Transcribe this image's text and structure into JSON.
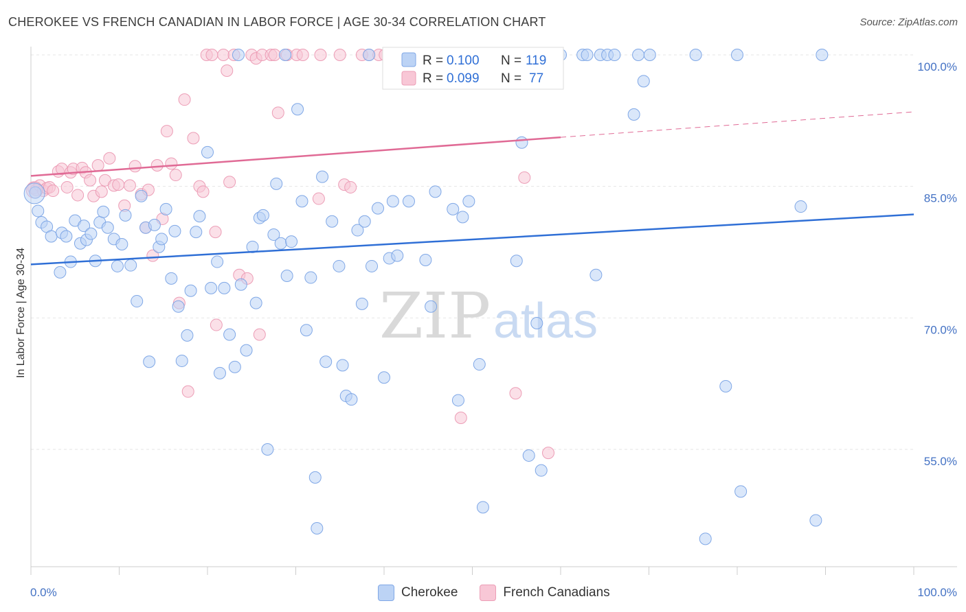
{
  "header": {
    "title": "CHEROKEE VS FRENCH CANADIAN IN LABOR FORCE | AGE 30-34 CORRELATION CHART",
    "source": "Source: ZipAtlas.com"
  },
  "watermark": {
    "zip": "ZIP",
    "atlas": "atlas"
  },
  "legend_top": {
    "rows": [
      {
        "r_label": "R = ",
        "r_value": "0.100",
        "n_label": "N = ",
        "n_value": "119"
      },
      {
        "r_label": "R = ",
        "r_value": "0.099",
        "n_label": "N = ",
        "n_value": "77"
      }
    ]
  },
  "legend_bottom": {
    "items": [
      "Cherokee",
      "French Canadians"
    ]
  },
  "colors": {
    "blue_fill": "#bcd3f5",
    "blue_stroke": "#7fa7e6",
    "blue_line": "#2f6fd6",
    "pink_fill": "#f8c7d6",
    "pink_stroke": "#ec9db6",
    "pink_line": "#e06a95"
  },
  "chart_data": {
    "type": "scatter",
    "title": "CHEROKEE VS FRENCH CANADIAN IN LABOR FORCE | AGE 30-34 CORRELATION CHART",
    "xlabel": "",
    "ylabel": "In Labor Force | Age 30-34",
    "xlim": [
      0,
      100
    ],
    "ylim": [
      40,
      102
    ],
    "x_tick_labels": [
      "0.0%",
      "100.0%"
    ],
    "y_ticks": [
      {
        "value": 100,
        "label": "100.0%"
      },
      {
        "value": 85,
        "label": "85.0%"
      },
      {
        "value": 70,
        "label": "70.0%"
      },
      {
        "value": 55,
        "label": "55.0%"
      }
    ],
    "grid": true,
    "legend_placement": "top-center",
    "series": [
      {
        "name": "Cherokee",
        "trend": {
          "x": [
            0,
            100
          ],
          "y": [
            76.1,
            81.8
          ],
          "style": "solid"
        },
        "points": [
          [
            0.5,
            84.3
          ],
          [
            0.8,
            82.2
          ],
          [
            1.2,
            80.9
          ],
          [
            1.8,
            80.4
          ],
          [
            2.3,
            79.3
          ],
          [
            3.5,
            79.7
          ],
          [
            4,
            79.3
          ],
          [
            3.3,
            75.2
          ],
          [
            4.5,
            76.4
          ],
          [
            5,
            81.1
          ],
          [
            5.6,
            78.5
          ],
          [
            6,
            80.5
          ],
          [
            6.3,
            78.9
          ],
          [
            6.8,
            79.6
          ],
          [
            7.3,
            76.5
          ],
          [
            7.8,
            80.9
          ],
          [
            8.2,
            82.1
          ],
          [
            8.7,
            80.3
          ],
          [
            9.4,
            79.0
          ],
          [
            9.8,
            75.9
          ],
          [
            10.3,
            78.4
          ],
          [
            10.7,
            81.7
          ],
          [
            11.3,
            76.0
          ],
          [
            12.0,
            71.9
          ],
          [
            12.5,
            83.9
          ],
          [
            13.0,
            80.3
          ],
          [
            13.4,
            65.0
          ],
          [
            14.0,
            80.6
          ],
          [
            14.5,
            78.1
          ],
          [
            14.8,
            79.0
          ],
          [
            15.3,
            82.4
          ],
          [
            15.9,
            74.5
          ],
          [
            16.3,
            79.9
          ],
          [
            16.7,
            71.3
          ],
          [
            17.1,
            65.1
          ],
          [
            17.7,
            68.0
          ],
          [
            18.1,
            73.1
          ],
          [
            18.7,
            79.8
          ],
          [
            19.1,
            81.6
          ],
          [
            20.0,
            88.9
          ],
          [
            20.4,
            73.4
          ],
          [
            21.1,
            76.4
          ],
          [
            21.4,
            63.7
          ],
          [
            21.9,
            73.4
          ],
          [
            22.5,
            68.1
          ],
          [
            23.1,
            64.4
          ],
          [
            23.5,
            100.0
          ],
          [
            23.8,
            73.8
          ],
          [
            24.4,
            66.3
          ],
          [
            25.1,
            78.1
          ],
          [
            25.5,
            71.7
          ],
          [
            25.9,
            81.4
          ],
          [
            26.3,
            81.7
          ],
          [
            26.8,
            55.0
          ],
          [
            27.5,
            79.5
          ],
          [
            27.8,
            85.3
          ],
          [
            28.3,
            78.5
          ],
          [
            28.8,
            100.0
          ],
          [
            29.0,
            74.8
          ],
          [
            29.5,
            78.7
          ],
          [
            30.2,
            93.8
          ],
          [
            30.7,
            83.3
          ],
          [
            31.2,
            68.6
          ],
          [
            31.7,
            74.6
          ],
          [
            32.2,
            51.8
          ],
          [
            32.4,
            46.0
          ],
          [
            33.0,
            86.1
          ],
          [
            33.4,
            65.0
          ],
          [
            34.1,
            81.0
          ],
          [
            34.9,
            75.9
          ],
          [
            35.3,
            64.6
          ],
          [
            35.7,
            61.1
          ],
          [
            36.3,
            60.7
          ],
          [
            37.0,
            80.0
          ],
          [
            37.5,
            71.6
          ],
          [
            37.8,
            81.0
          ],
          [
            38.3,
            100.0
          ],
          [
            38.6,
            75.9
          ],
          [
            39.3,
            82.5
          ],
          [
            40.0,
            63.2
          ],
          [
            40.6,
            76.8
          ],
          [
            41.0,
            83.3
          ],
          [
            41.5,
            77.1
          ],
          [
            42.0,
            100.0
          ],
          [
            42.8,
            83.3
          ],
          [
            43.1,
            100.0
          ],
          [
            44.7,
            76.6
          ],
          [
            45.3,
            71.3
          ],
          [
            45.8,
            84.4
          ],
          [
            46.5,
            100.0
          ],
          [
            47.8,
            82.4
          ],
          [
            48.4,
            60.6
          ],
          [
            48.9,
            81.5
          ],
          [
            49.6,
            83.3
          ],
          [
            50.8,
            64.7
          ],
          [
            51.2,
            48.4
          ],
          [
            55.0,
            76.5
          ],
          [
            55.6,
            90.0
          ],
          [
            56.4,
            54.3
          ],
          [
            57.3,
            69.4
          ],
          [
            57.8,
            52.6
          ],
          [
            60.0,
            100.0
          ],
          [
            62.5,
            100.0
          ],
          [
            63.0,
            100.0
          ],
          [
            64.0,
            74.9
          ],
          [
            64.5,
            100.0
          ],
          [
            65.3,
            100.0
          ],
          [
            66.1,
            100.0
          ],
          [
            68.3,
            93.2
          ],
          [
            68.8,
            100.0
          ],
          [
            69.4,
            97.0
          ],
          [
            70.1,
            100.0
          ],
          [
            75.3,
            100.0
          ],
          [
            76.4,
            44.8
          ],
          [
            78.7,
            62.2
          ],
          [
            80.0,
            100.0
          ],
          [
            80.4,
            50.2
          ],
          [
            87.2,
            82.7
          ],
          [
            88.9,
            46.9
          ],
          [
            89.6,
            100.0
          ]
        ]
      },
      {
        "name": "French Canadians",
        "trend": {
          "x": [
            0,
            60,
            100
          ],
          "y": [
            86.2,
            90.6,
            93.5
          ],
          "style": "solid-then-dashed",
          "solid_until": 60
        },
        "points": [
          [
            0.3,
            84.8
          ],
          [
            0.6,
            84.6
          ],
          [
            1.0,
            85.1
          ],
          [
            1.4,
            84.5
          ],
          [
            1.8,
            84.8
          ],
          [
            2.1,
            84.9
          ],
          [
            2.5,
            84.5
          ],
          [
            3.1,
            86.7
          ],
          [
            3.5,
            87.0
          ],
          [
            4.1,
            84.9
          ],
          [
            4.5,
            86.6
          ],
          [
            4.8,
            87.0
          ],
          [
            5.3,
            84.0
          ],
          [
            5.8,
            87.1
          ],
          [
            6.2,
            86.6
          ],
          [
            6.7,
            85.7
          ],
          [
            7.1,
            83.9
          ],
          [
            7.6,
            87.4
          ],
          [
            8.0,
            84.4
          ],
          [
            8.4,
            85.7
          ],
          [
            8.9,
            88.2
          ],
          [
            9.4,
            85.1
          ],
          [
            9.9,
            85.2
          ],
          [
            10.6,
            82.8
          ],
          [
            11.2,
            85.1
          ],
          [
            11.8,
            87.3
          ],
          [
            12.5,
            84.1
          ],
          [
            13.3,
            84.6
          ],
          [
            13.0,
            80.3
          ],
          [
            13.8,
            77.1
          ],
          [
            14.3,
            87.4
          ],
          [
            14.9,
            81.3
          ],
          [
            15.4,
            91.3
          ],
          [
            15.9,
            87.6
          ],
          [
            16.4,
            86.3
          ],
          [
            16.8,
            71.7
          ],
          [
            17.4,
            94.9
          ],
          [
            17.8,
            61.6
          ],
          [
            18.4,
            90.5
          ],
          [
            19.1,
            85.0
          ],
          [
            19.5,
            84.4
          ],
          [
            19.9,
            100.0
          ],
          [
            20.5,
            100.0
          ],
          [
            20.9,
            79.8
          ],
          [
            21.0,
            69.2
          ],
          [
            21.8,
            100.0
          ],
          [
            22.2,
            98.2
          ],
          [
            22.5,
            85.5
          ],
          [
            23.0,
            100.0
          ],
          [
            23.6,
            74.9
          ],
          [
            24.5,
            74.5
          ],
          [
            25.0,
            100.0
          ],
          [
            25.5,
            99.6
          ],
          [
            25.9,
            68.1
          ],
          [
            26.2,
            100.0
          ],
          [
            27.2,
            100.0
          ],
          [
            27.6,
            100.0
          ],
          [
            28.0,
            93.4
          ],
          [
            29.0,
            100.0
          ],
          [
            30.1,
            100.0
          ],
          [
            30.8,
            100.0
          ],
          [
            32.6,
            83.6
          ],
          [
            32.8,
            100.0
          ],
          [
            35.0,
            100.0
          ],
          [
            35.5,
            85.2
          ],
          [
            36.2,
            84.9
          ],
          [
            37.5,
            100.0
          ],
          [
            38.3,
            100.0
          ],
          [
            39.4,
            100.0
          ],
          [
            40.1,
            100.0
          ],
          [
            42.4,
            100.0
          ],
          [
            44.9,
            100.0
          ],
          [
            48.7,
            58.6
          ],
          [
            54.9,
            61.4
          ],
          [
            55.9,
            86.0
          ],
          [
            58.6,
            54.6
          ]
        ]
      }
    ]
  }
}
